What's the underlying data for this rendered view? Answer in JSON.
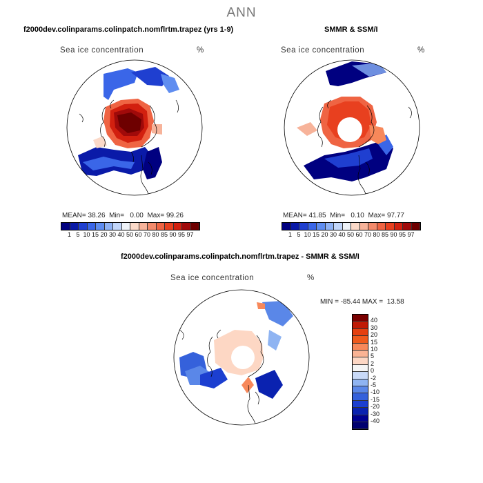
{
  "season": "ANN",
  "panels": [
    {
      "title": "f2000dev.colinparams.colinpatch.nomflrtm.trapez (yrs 1-9)",
      "variable": "Sea ice concentration",
      "units": "%",
      "stats": {
        "mean_label": "MEAN=",
        "mean": "38.26",
        "min_label": "Min=",
        "min": "0.00",
        "max_label": "Max=",
        "max": "99.26"
      }
    },
    {
      "title": "SMMR & SSM/I",
      "variable": "Sea ice concentration",
      "units": "%",
      "stats": {
        "mean_label": "MEAN=",
        "mean": "41.85",
        "min_label": "Min=",
        "min": "0.10",
        "max_label": "Max=",
        "max": "97.77"
      }
    },
    {
      "title": "f2000dev.colinparams.colinpatch.nomflrtm.trapez - SMMR & SSM/I",
      "variable": "Sea ice concentration",
      "units": "%",
      "stats": {
        "text": "MIN = -85.44 MAX =  13.58"
      }
    }
  ],
  "colorbar_main": {
    "ticks": [
      "1",
      "5",
      "10",
      "15",
      "20",
      "30",
      "40",
      "50",
      "60",
      "70",
      "80",
      "85",
      "90",
      "95",
      "97"
    ],
    "colors": [
      "#000080",
      "#0a1aa8",
      "#1f3fd0",
      "#3a66e8",
      "#5f8df0",
      "#8fb2f5",
      "#c2d6fa",
      "#eef2f8",
      "#fbd9c8",
      "#f7b39a",
      "#f38a6b",
      "#ef6443",
      "#e8401f",
      "#d2200f",
      "#a00a0a",
      "#6e0000"
    ]
  },
  "colorbar_diff": {
    "labels": [
      "40",
      "30",
      "20",
      "15",
      "10",
      "5",
      "2",
      "0",
      "-2",
      "-5",
      "-10",
      "-15",
      "-20",
      "-30",
      "-40"
    ],
    "colors": [
      "#7a0000",
      "#c01a05",
      "#e5400f",
      "#ef5a1c",
      "#f7885a",
      "#fab394",
      "#fdd7c4",
      "#f5f5f5",
      "#c9daf8",
      "#8fb4f2",
      "#5a87e8",
      "#3561db",
      "#1c3fd0",
      "#0a22b0",
      "#000090",
      "#000070"
    ]
  }
}
